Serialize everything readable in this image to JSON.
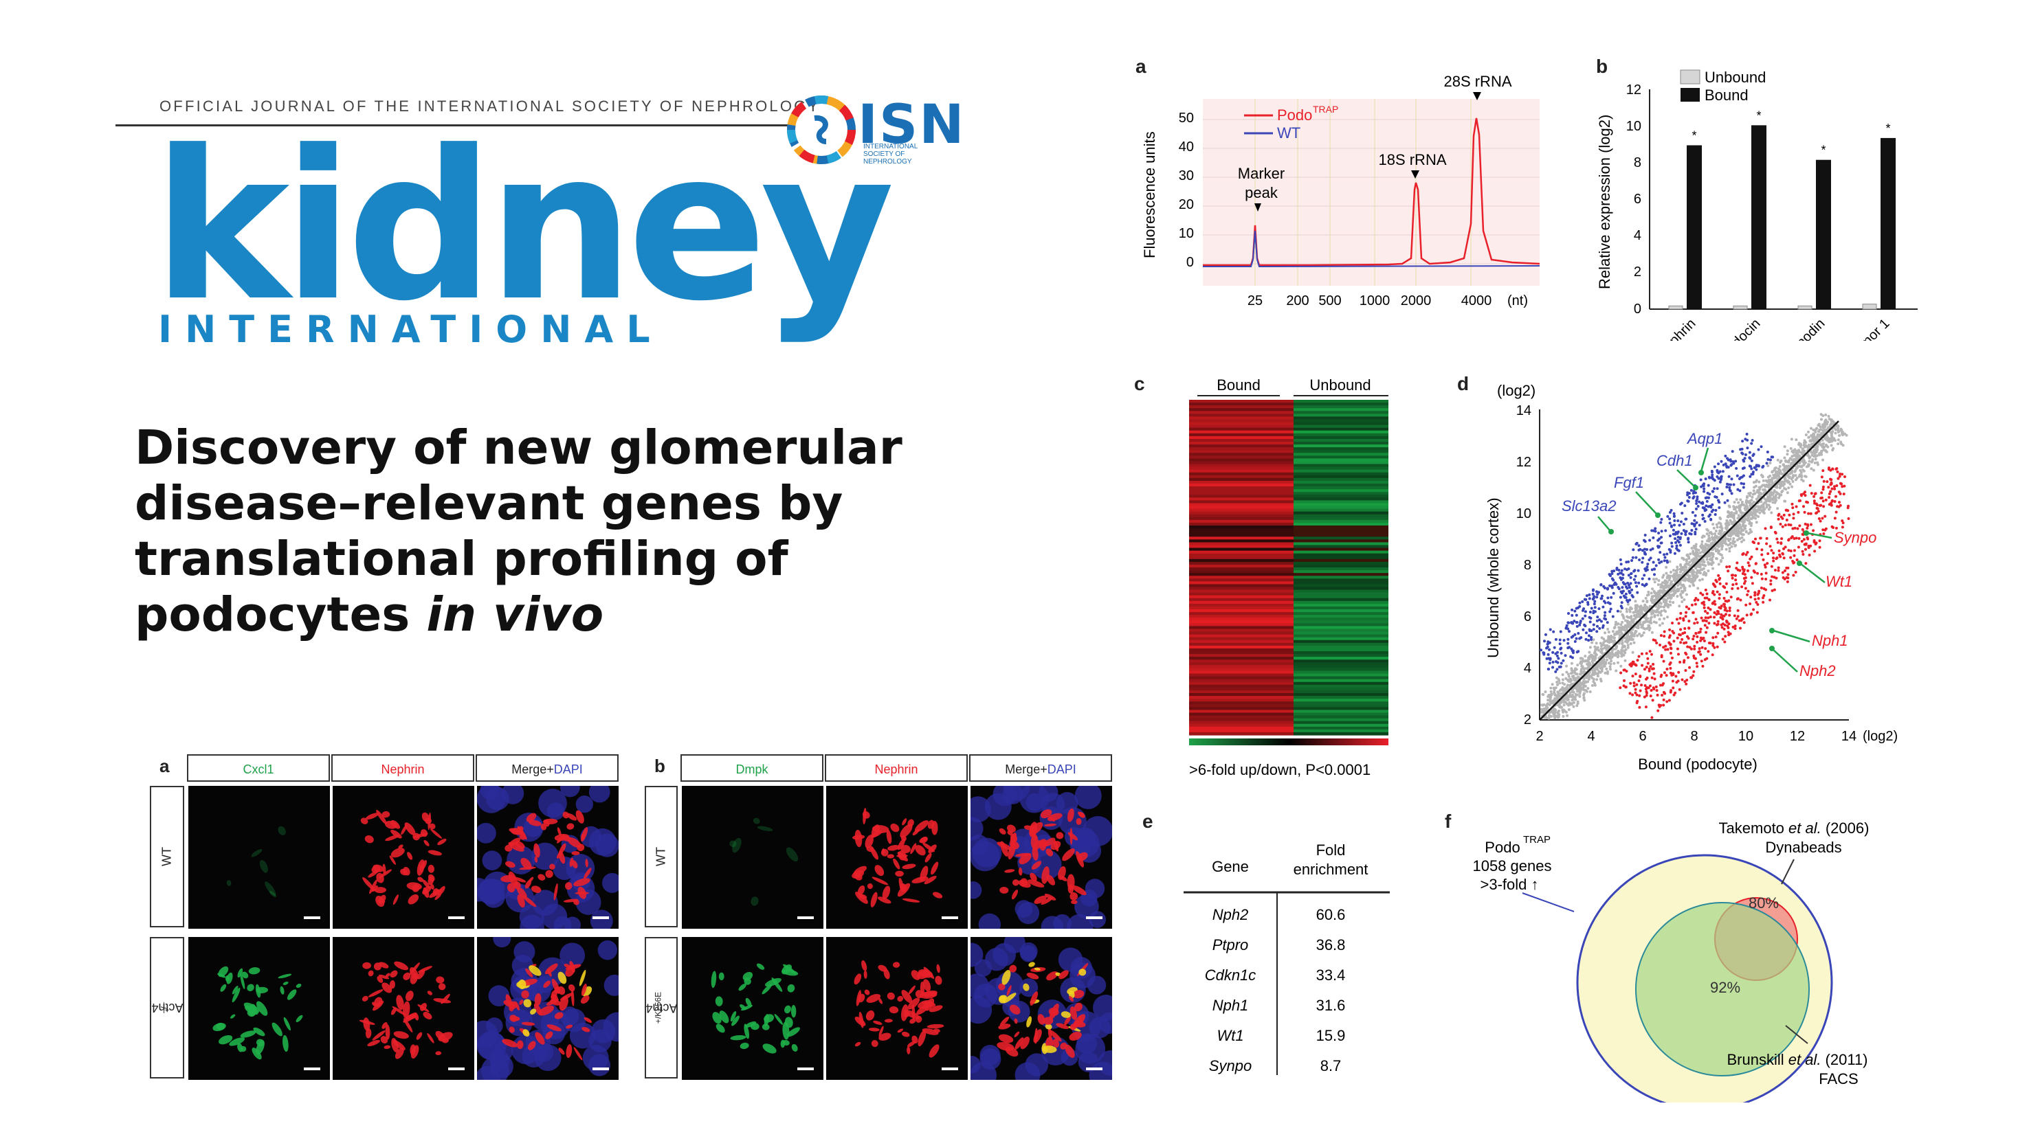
{
  "journal": {
    "tagline": "OFFICIAL JOURNAL OF THE INTERNATIONAL SOCIETY OF NEPHROLOGY",
    "name_main": "kidney",
    "name_sub": "INTERNATIONAL",
    "society_abbr": "ISN",
    "society_full": "INTERNATIONAL SOCIETY OF NEPHROLOGY"
  },
  "article": {
    "title_plain": "Discovery of new glomerular disease–relevant genes by translational profiling of podocytes ",
    "title_italic": "in vivo"
  },
  "colors": {
    "journal_blue": "#1a86c6",
    "red": "#e8202a",
    "blue": "#3a46b8",
    "green": "#1fa24a"
  },
  "panel_a": {
    "label": "a",
    "ylabel": "Fluorescence units",
    "legend": [
      {
        "name": "Podo",
        "sup": "TRAP",
        "color": "#e8202a"
      },
      {
        "name": "WT",
        "color": "#3a46b8"
      }
    ],
    "annotations": [
      "Marker",
      "peak",
      "18S rRNA",
      "28S rRNA"
    ],
    "yticks": [
      "50",
      "40",
      "30",
      "20",
      "10",
      "0"
    ],
    "xticks": [
      "25",
      "200",
      "500",
      "1000",
      "2000",
      "4000",
      "(nt)"
    ]
  },
  "panel_b": {
    "label": "b",
    "ylabel": "Relative expression (log2)",
    "legend": [
      "Unbound",
      "Bound"
    ],
    "yticks": [
      "12",
      "10",
      "8",
      "6",
      "4",
      "2",
      "0"
    ],
    "star": "*"
  },
  "panel_c": {
    "label": "c",
    "headers": [
      "Bound",
      "Unbound"
    ],
    "caption": ">6-fold up/down, P<0.0001"
  },
  "panel_d": {
    "label": "d",
    "ylabel": "Unbound (whole cortex)",
    "xlabel": "Bound (podocyte)",
    "yunit": "(log2)",
    "xunit": "(log2)",
    "yticks": [
      "14",
      "12",
      "10",
      "8",
      "6",
      "4",
      "2"
    ],
    "xticks": [
      "2",
      "4",
      "6",
      "8",
      "10",
      "12",
      "14"
    ],
    "genes_up": [
      "Aqp1",
      "Cdh1",
      "Fgf1",
      "Slc13a2"
    ],
    "genes_down": [
      "Synpo",
      "Wt1",
      "Nph1",
      "Nph2"
    ]
  },
  "panel_e": {
    "label": "e",
    "col_gene": "Gene",
    "col_fold_1": "Fold",
    "col_fold_2": "enrichment",
    "rows": [
      {
        "gene": "Nph2",
        "fold": "60.6"
      },
      {
        "gene": "Ptpro",
        "fold": "36.8"
      },
      {
        "gene": "Cdkn1c",
        "fold": "33.4"
      },
      {
        "gene": "Nph1",
        "fold": "31.6"
      },
      {
        "gene": "Wt1",
        "fold": "15.9"
      },
      {
        "gene": "Synpo",
        "fold": "8.7"
      }
    ]
  },
  "panel_f": {
    "label": "f",
    "podo": "Podo",
    "podo_sup": "TRAP",
    "podo_l2": "1058 genes",
    "podo_l3": ">3-fold ↑",
    "takemoto_a": "Takemoto ",
    "takemoto_b": "et al.",
    "takemoto_c": " (2006)",
    "takemoto_d": "Dynabeads",
    "brunskill_a": "Brunskill ",
    "brunskill_b": "et al.",
    "brunskill_c": " (2011)",
    "brunskill_d": "FACS",
    "pct_red": "80%",
    "pct_green": "92%"
  },
  "micro_a": {
    "label": "a",
    "headers": [
      "Cxcl1",
      "Nephrin",
      "Merge+",
      "DAPI"
    ],
    "rows": [
      "WT",
      "Actn4",
      "−/−"
    ]
  },
  "micro_b": {
    "label": "b",
    "headers": [
      "Dmpk",
      "Nephrin",
      "Merge+",
      "DAPI"
    ],
    "rows": [
      "WT",
      "Actn4",
      "+/K256E"
    ]
  }
}
